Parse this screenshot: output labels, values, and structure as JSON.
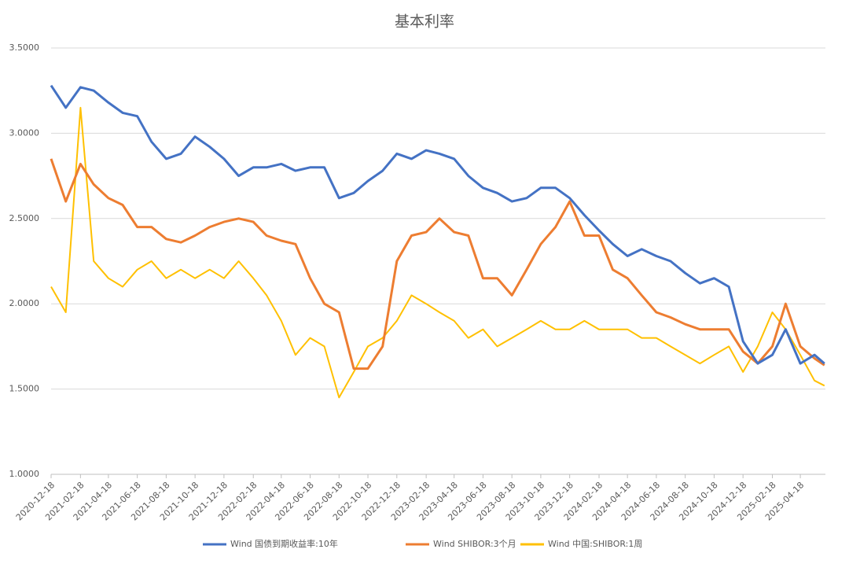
{
  "chart_data": {
    "type": "line",
    "title": "基本利率",
    "x": [
      "2020-12-18",
      "2021-01-18",
      "2021-02-18",
      "2021-03-18",
      "2021-04-18",
      "2021-05-18",
      "2021-06-18",
      "2021-07-18",
      "2021-08-18",
      "2021-09-18",
      "2021-10-18",
      "2021-11-18",
      "2021-12-18",
      "2022-01-18",
      "2022-02-18",
      "2022-03-18",
      "2022-04-18",
      "2022-05-18",
      "2022-06-18",
      "2022-07-18",
      "2022-08-18",
      "2022-09-18",
      "2022-10-18",
      "2022-11-18",
      "2022-12-18",
      "2023-01-18",
      "2023-02-18",
      "2023-03-18",
      "2023-04-18",
      "2023-05-18",
      "2023-06-18",
      "2023-07-18",
      "2023-08-18",
      "2023-09-18",
      "2023-10-18",
      "2023-11-18",
      "2023-12-18",
      "2024-01-18",
      "2024-02-18",
      "2024-03-18",
      "2024-04-18",
      "2024-05-18",
      "2024-06-18",
      "2024-07-18",
      "2024-08-18",
      "2024-09-18",
      "2024-10-18",
      "2024-11-18",
      "2024-12-18",
      "2025-01-18",
      "2025-02-18",
      "2025-03-18",
      "2025-04-18",
      "2025-05-18",
      "2025-06-08"
    ],
    "series": [
      {
        "name": "Wind 国债到期收益率:10年",
        "color": "#4472c4",
        "values": [
          3.28,
          3.15,
          3.27,
          3.25,
          3.18,
          3.12,
          3.1,
          2.95,
          2.85,
          2.88,
          2.98,
          2.92,
          2.85,
          2.75,
          2.8,
          2.8,
          2.82,
          2.78,
          2.8,
          2.8,
          2.62,
          2.65,
          2.72,
          2.78,
          2.88,
          2.85,
          2.9,
          2.88,
          2.85,
          2.75,
          2.68,
          2.65,
          2.6,
          2.62,
          2.68,
          2.68,
          2.62,
          2.52,
          2.43,
          2.35,
          2.28,
          2.32,
          2.28,
          2.25,
          2.18,
          2.12,
          2.15,
          2.1,
          1.78,
          1.65,
          1.7,
          1.85,
          1.65,
          1.7,
          1.65
        ]
      },
      {
        "name": "Wind SHIBOR:3个月",
        "color": "#ed7d31",
        "values": [
          2.85,
          2.6,
          2.82,
          2.7,
          2.62,
          2.58,
          2.45,
          2.45,
          2.38,
          2.36,
          2.4,
          2.45,
          2.48,
          2.5,
          2.48,
          2.4,
          2.37,
          2.35,
          2.15,
          2.0,
          1.95,
          1.62,
          1.62,
          1.75,
          2.25,
          2.4,
          2.42,
          2.5,
          2.42,
          2.4,
          2.15,
          2.15,
          2.05,
          2.2,
          2.35,
          2.45,
          2.6,
          2.4,
          2.4,
          2.2,
          2.15,
          2.05,
          1.95,
          1.92,
          1.88,
          1.85,
          1.85,
          1.85,
          1.72,
          1.65,
          1.75,
          2.0,
          1.75,
          1.68,
          1.64
        ]
      },
      {
        "name": "Wind 中国:SHIBOR:1周",
        "color": "#ffc000",
        "values": [
          2.1,
          1.95,
          3.15,
          2.25,
          2.15,
          2.1,
          2.2,
          2.25,
          2.15,
          2.2,
          2.15,
          2.2,
          2.15,
          2.25,
          2.15,
          2.05,
          1.9,
          1.7,
          1.8,
          1.75,
          1.45,
          1.6,
          1.75,
          1.8,
          1.9,
          2.05,
          2.0,
          1.95,
          1.9,
          1.8,
          1.85,
          1.75,
          1.8,
          1.85,
          1.9,
          1.85,
          1.85,
          1.9,
          1.85,
          1.85,
          1.85,
          1.8,
          1.8,
          1.75,
          1.7,
          1.65,
          1.7,
          1.75,
          1.6,
          1.75,
          1.95,
          1.85,
          1.7,
          1.55,
          1.52
        ]
      }
    ],
    "xlim": [
      "2020-12-18",
      "2025-06-10"
    ],
    "xticks": [
      "2020-12-18",
      "2021-02-18",
      "2021-04-18",
      "2021-06-18",
      "2021-08-18",
      "2021-10-18",
      "2021-12-18",
      "2022-02-18",
      "2022-04-18",
      "2022-06-18",
      "2022-08-18",
      "2022-10-18",
      "2022-12-18",
      "2023-02-18",
      "2023-04-18",
      "2023-06-18",
      "2023-08-18",
      "2023-10-18",
      "2023-12-18",
      "2024-02-18",
      "2024-04-18",
      "2024-06-18",
      "2024-08-18",
      "2024-10-18",
      "2024-12-18",
      "2025-02-18",
      "2025-04-18"
    ],
    "ylim": [
      1.0,
      3.5
    ],
    "yticks": [
      {
        "value": 1.0,
        "label": "1.0000"
      },
      {
        "value": 1.5,
        "label": "1.5000"
      },
      {
        "value": 2.0,
        "label": "2.0000"
      },
      {
        "value": 2.5,
        "label": "2.5000"
      },
      {
        "value": 3.0,
        "label": "3.0000"
      },
      {
        "value": 3.5,
        "label": "3.5000"
      }
    ],
    "grid": true,
    "legend": "bottom"
  }
}
